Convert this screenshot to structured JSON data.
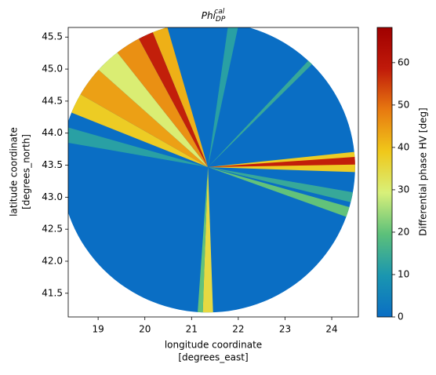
{
  "chart_data": {
    "type": "radar_ppi",
    "title": {
      "base": "Phi",
      "sub": "DP",
      "sup": "cal"
    },
    "x_label": [
      "longitude coordinate",
      "[degrees_east]"
    ],
    "y_label": [
      "latitude coordinate",
      "[degrees_north]"
    ],
    "colorbar_label": "Differential phase HV [deg]",
    "xlim": [
      18.36,
      24.57
    ],
    "ylim": [
      41.13,
      45.65
    ],
    "xticks": [
      19,
      20,
      21,
      22,
      23,
      24
    ],
    "yticks": [
      41.5,
      {
        "value": 42,
        "label": "42.0"
      },
      42.5,
      {
        "value": 43,
        "label": "43.0"
      },
      43.5,
      {
        "value": 44,
        "label": "44.0"
      },
      44.5,
      {
        "value": 45,
        "label": "45.0"
      },
      45.5
    ],
    "clim": [
      0,
      68.3
    ],
    "cticks": [
      0,
      10,
      20,
      30,
      40,
      50,
      60
    ],
    "colormap": [
      "#0a6ec4",
      "#1a96b0",
      "#5cc07a",
      "#d8f07a",
      "#f0c81a",
      "#e87a10",
      "#c01a0a",
      "#a00000"
    ],
    "center": [
      21.35,
      43.47
    ],
    "radius": [
      3.15,
      2.27
    ],
    "base_value": 0,
    "sectors": [
      {
        "az": [
          84,
          92
        ],
        "value": 38
      },
      {
        "az": [
          86,
          89
        ],
        "value": 58
      },
      {
        "az": [
          100,
          104
        ],
        "value": 14
      },
      {
        "az": [
          106,
          110
        ],
        "value": 20
      },
      {
        "az": [
          178,
          182
        ],
        "value": 35
      },
      {
        "az": [
          182,
          184
        ],
        "value": 20
      },
      {
        "az": [
          43,
          45
        ],
        "value": 14
      },
      {
        "az": [
          292,
          300
        ],
        "value": 38
      },
      {
        "az": [
          300,
          312
        ],
        "value": 44
      },
      {
        "az": [
          312,
          322
        ],
        "value": 30
      },
      {
        "az": [
          322,
          332
        ],
        "value": 46
      },
      {
        "az": [
          332,
          338
        ],
        "value": 58
      },
      {
        "az": [
          338,
          344
        ],
        "value": 42
      },
      {
        "az": [
          280,
          286
        ],
        "value": 12
      },
      {
        "az": [
          8,
          12
        ],
        "value": 12
      }
    ]
  }
}
